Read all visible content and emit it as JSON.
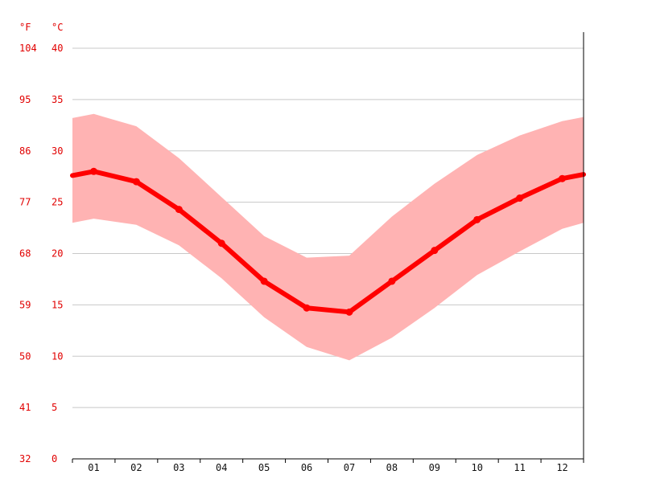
{
  "chart_data": {
    "type": "line",
    "categories": [
      "01",
      "02",
      "03",
      "04",
      "05",
      "06",
      "07",
      "08",
      "09",
      "10",
      "11",
      "12"
    ],
    "series": [
      {
        "values": [
          28.0,
          27.0,
          24.3,
          21.0,
          17.3,
          14.7,
          14.3,
          17.3,
          20.3,
          23.3,
          25.4,
          27.3
        ]
      },
      {
        "values": [
          33.6,
          32.4,
          29.3,
          25.5,
          21.7,
          19.6,
          19.8,
          23.6,
          26.8,
          29.6,
          31.5,
          32.9
        ]
      },
      {
        "values": [
          23.4,
          22.8,
          20.8,
          17.6,
          13.8,
          10.9,
          9.6,
          11.8,
          14.7,
          17.9,
          20.2,
          22.4
        ]
      }
    ],
    "edge_values": {
      "mean": [
        27.6,
        27.7
      ],
      "high": [
        33.2,
        33.3
      ],
      "low": [
        23.0,
        23.0
      ]
    },
    "y_axis_left_celsius": {
      "unit_label": "°C",
      "ticks": [
        "40",
        "35",
        "30",
        "25",
        "20",
        "15",
        "10",
        "5",
        "0"
      ],
      "values": [
        40,
        35,
        30,
        25,
        20,
        15,
        10,
        5,
        0
      ]
    },
    "y_axis_left_fahrenheit": {
      "unit_label": "°F",
      "ticks": [
        "104",
        "95",
        "86",
        "77",
        "68",
        "59",
        "50",
        "41",
        "32"
      ]
    },
    "ylim": [
      0,
      40
    ],
    "grid": true,
    "colors": {
      "line": "#ff0000",
      "band": "#ffb3b3",
      "axis_text": "#e10000",
      "x_text": "#111111",
      "grid": "#c8c8c8"
    }
  }
}
